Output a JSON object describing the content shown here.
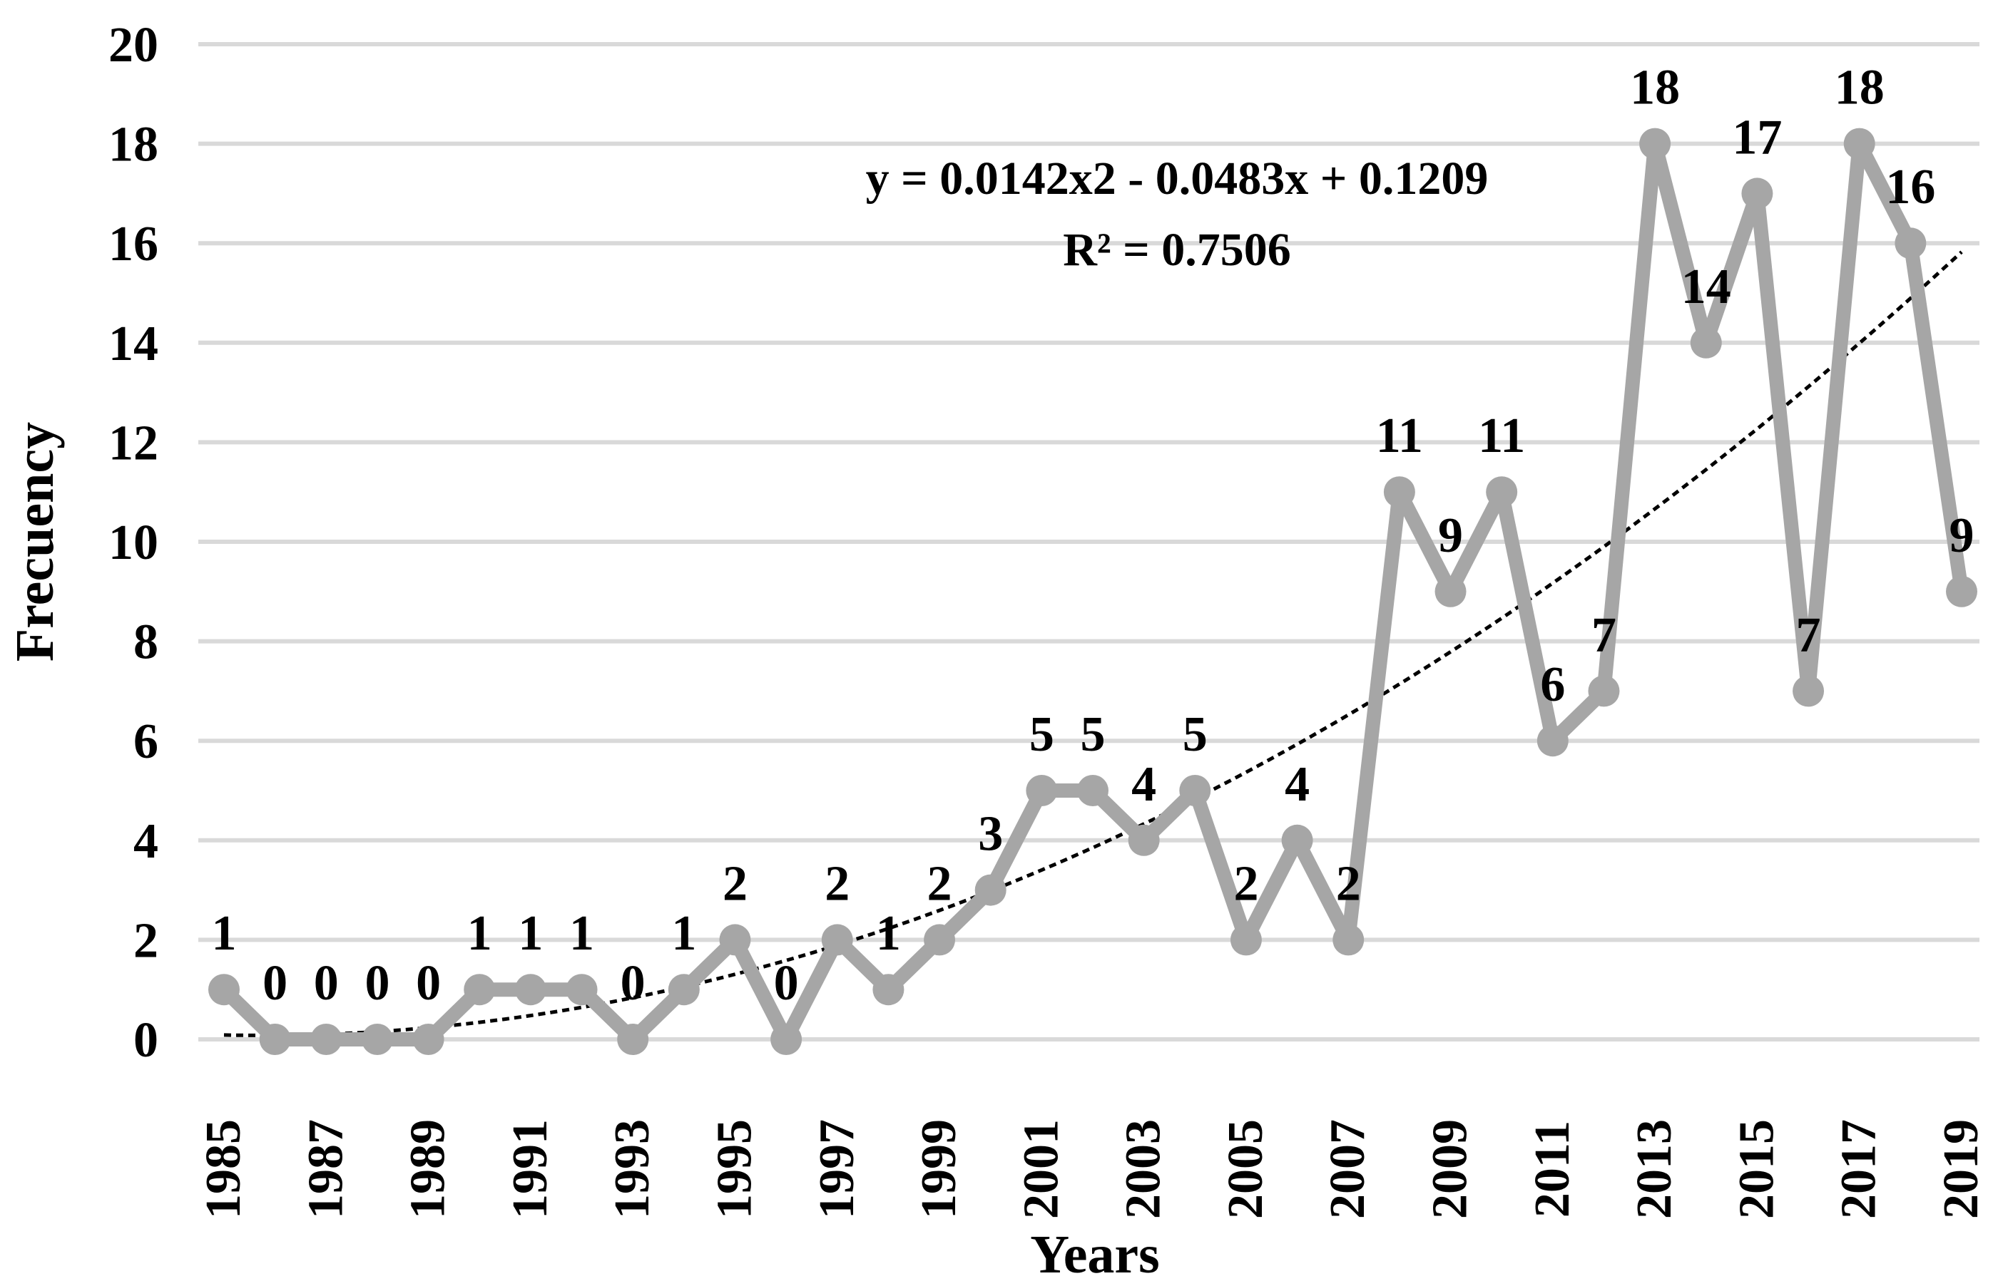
{
  "chart_data": {
    "type": "line",
    "title": "",
    "xlabel": "Years",
    "ylabel": "Frecuency",
    "ylim": [
      0,
      20
    ],
    "yticks": [
      0,
      2,
      4,
      6,
      8,
      10,
      12,
      14,
      16,
      18,
      20
    ],
    "x": [
      1985,
      1986,
      1987,
      1988,
      1989,
      1990,
      1991,
      1992,
      1993,
      1994,
      1995,
      1996,
      1997,
      1998,
      1999,
      2000,
      2001,
      2002,
      2003,
      2004,
      2005,
      2006,
      2007,
      2008,
      2009,
      2010,
      2011,
      2012,
      2013,
      2014,
      2015,
      2016,
      2017,
      2018,
      2019
    ],
    "x_tick_labels": [
      "1985",
      "1987",
      "1989",
      "1991",
      "1993",
      "1995",
      "1997",
      "1999",
      "2001",
      "2003",
      "2005",
      "2007",
      "2009",
      "2011",
      "2013",
      "2015",
      "2017",
      "2019"
    ],
    "series": [
      {
        "name": "Frecuency",
        "values": [
          1,
          0,
          0,
          0,
          0,
          1,
          1,
          1,
          0,
          1,
          2,
          0,
          2,
          1,
          2,
          3,
          5,
          5,
          4,
          5,
          2,
          4,
          2,
          11,
          9,
          11,
          6,
          7,
          18,
          14,
          17,
          7,
          18,
          16,
          9
        ],
        "color": "#a6a6a6"
      }
    ],
    "trendline": {
      "type": "polynomial",
      "order": 2,
      "coefficients": {
        "a": 0.0142,
        "b": -0.0483,
        "c": 0.1209
      },
      "equation": "y = 0.0142x2 - 0.0483x + 0.1209",
      "r_squared": "R² = 0.7506",
      "color": "#000000",
      "style": "dotted"
    },
    "grid": true,
    "legend": "none",
    "colors": {
      "series": "#a6a6a6",
      "gridline": "#d9d9d9",
      "text": "#000000",
      "trendline": "#000000"
    }
  }
}
